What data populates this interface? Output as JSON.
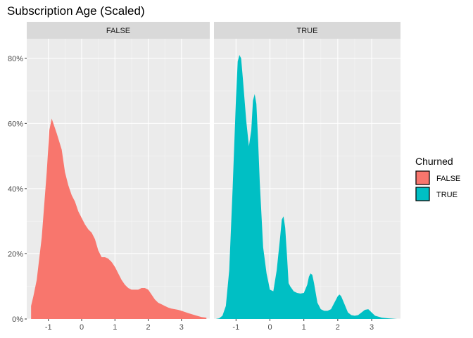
{
  "chart_data": {
    "type": "area",
    "title": "Subscription Age (Scaled)",
    "xlabel": "",
    "ylabel": "",
    "ylim": [
      0,
      0.86
    ],
    "xlim": [
      -1.65,
      3.85
    ],
    "y_ticks": [
      0,
      0.2,
      0.4,
      0.6,
      0.8
    ],
    "y_tick_labels": [
      "0%",
      "20%",
      "40%",
      "60%",
      "80%"
    ],
    "x_ticks": [
      -1,
      0,
      1,
      2,
      3
    ],
    "x_tick_labels": [
      "-1",
      "0",
      "1",
      "2",
      "3"
    ],
    "grid": true,
    "legend": {
      "title": "Churned",
      "position": "right",
      "entries": [
        {
          "label": "FALSE",
          "color": "#F8766D"
        },
        {
          "label": "TRUE",
          "color": "#00BFC4"
        }
      ]
    },
    "panels": [
      {
        "strip": "FALSE",
        "color": "#F8766D",
        "x": [
          -1.52,
          -1.45,
          -1.35,
          -1.2,
          -1.05,
          -0.97,
          -0.9,
          -0.85,
          -0.75,
          -0.6,
          -0.5,
          -0.4,
          -0.3,
          -0.2,
          -0.1,
          0.0,
          0.1,
          0.2,
          0.3,
          0.4,
          0.5,
          0.6,
          0.7,
          0.8,
          0.9,
          1.0,
          1.1,
          1.2,
          1.3,
          1.4,
          1.5,
          1.6,
          1.7,
          1.8,
          1.9,
          2.0,
          2.1,
          2.2,
          2.3,
          2.4,
          2.5,
          2.6,
          2.7,
          2.8,
          2.9,
          3.0,
          3.2,
          3.4,
          3.6,
          3.75
        ],
        "y": [
          0.04,
          0.07,
          0.12,
          0.25,
          0.45,
          0.58,
          0.615,
          0.6,
          0.57,
          0.52,
          0.45,
          0.41,
          0.38,
          0.36,
          0.33,
          0.31,
          0.29,
          0.275,
          0.265,
          0.245,
          0.21,
          0.19,
          0.19,
          0.185,
          0.175,
          0.16,
          0.14,
          0.12,
          0.105,
          0.095,
          0.09,
          0.09,
          0.09,
          0.095,
          0.095,
          0.09,
          0.075,
          0.06,
          0.05,
          0.045,
          0.04,
          0.035,
          0.032,
          0.03,
          0.028,
          0.025,
          0.018,
          0.012,
          0.006,
          0.004
        ]
      },
      {
        "strip": "TRUE",
        "color": "#00BFC4",
        "x": [
          -1.6,
          -1.5,
          -1.4,
          -1.3,
          -1.2,
          -1.1,
          -1.0,
          -0.95,
          -0.9,
          -0.85,
          -0.8,
          -0.7,
          -0.62,
          -0.55,
          -0.5,
          -0.45,
          -0.4,
          -0.35,
          -0.3,
          -0.2,
          -0.1,
          0.0,
          0.1,
          0.2,
          0.3,
          0.35,
          0.4,
          0.45,
          0.5,
          0.55,
          0.6,
          0.7,
          0.8,
          0.9,
          1.0,
          1.1,
          1.15,
          1.2,
          1.25,
          1.3,
          1.35,
          1.4,
          1.5,
          1.6,
          1.7,
          1.8,
          1.9,
          2.0,
          2.05,
          2.1,
          2.2,
          2.3,
          2.4,
          2.5,
          2.6,
          2.7,
          2.8,
          2.9,
          3.0,
          3.1,
          3.3,
          3.5,
          3.75
        ],
        "y": [
          0.0,
          0.002,
          0.01,
          0.04,
          0.15,
          0.4,
          0.68,
          0.79,
          0.81,
          0.8,
          0.74,
          0.61,
          0.53,
          0.58,
          0.67,
          0.69,
          0.66,
          0.55,
          0.42,
          0.22,
          0.14,
          0.09,
          0.085,
          0.15,
          0.25,
          0.305,
          0.315,
          0.28,
          0.2,
          0.11,
          0.1,
          0.085,
          0.08,
          0.078,
          0.08,
          0.105,
          0.13,
          0.14,
          0.135,
          0.11,
          0.08,
          0.05,
          0.03,
          0.025,
          0.025,
          0.03,
          0.05,
          0.07,
          0.075,
          0.07,
          0.045,
          0.02,
          0.012,
          0.01,
          0.012,
          0.02,
          0.028,
          0.03,
          0.02,
          0.01,
          0.004,
          0.002,
          0.0
        ]
      }
    ]
  }
}
